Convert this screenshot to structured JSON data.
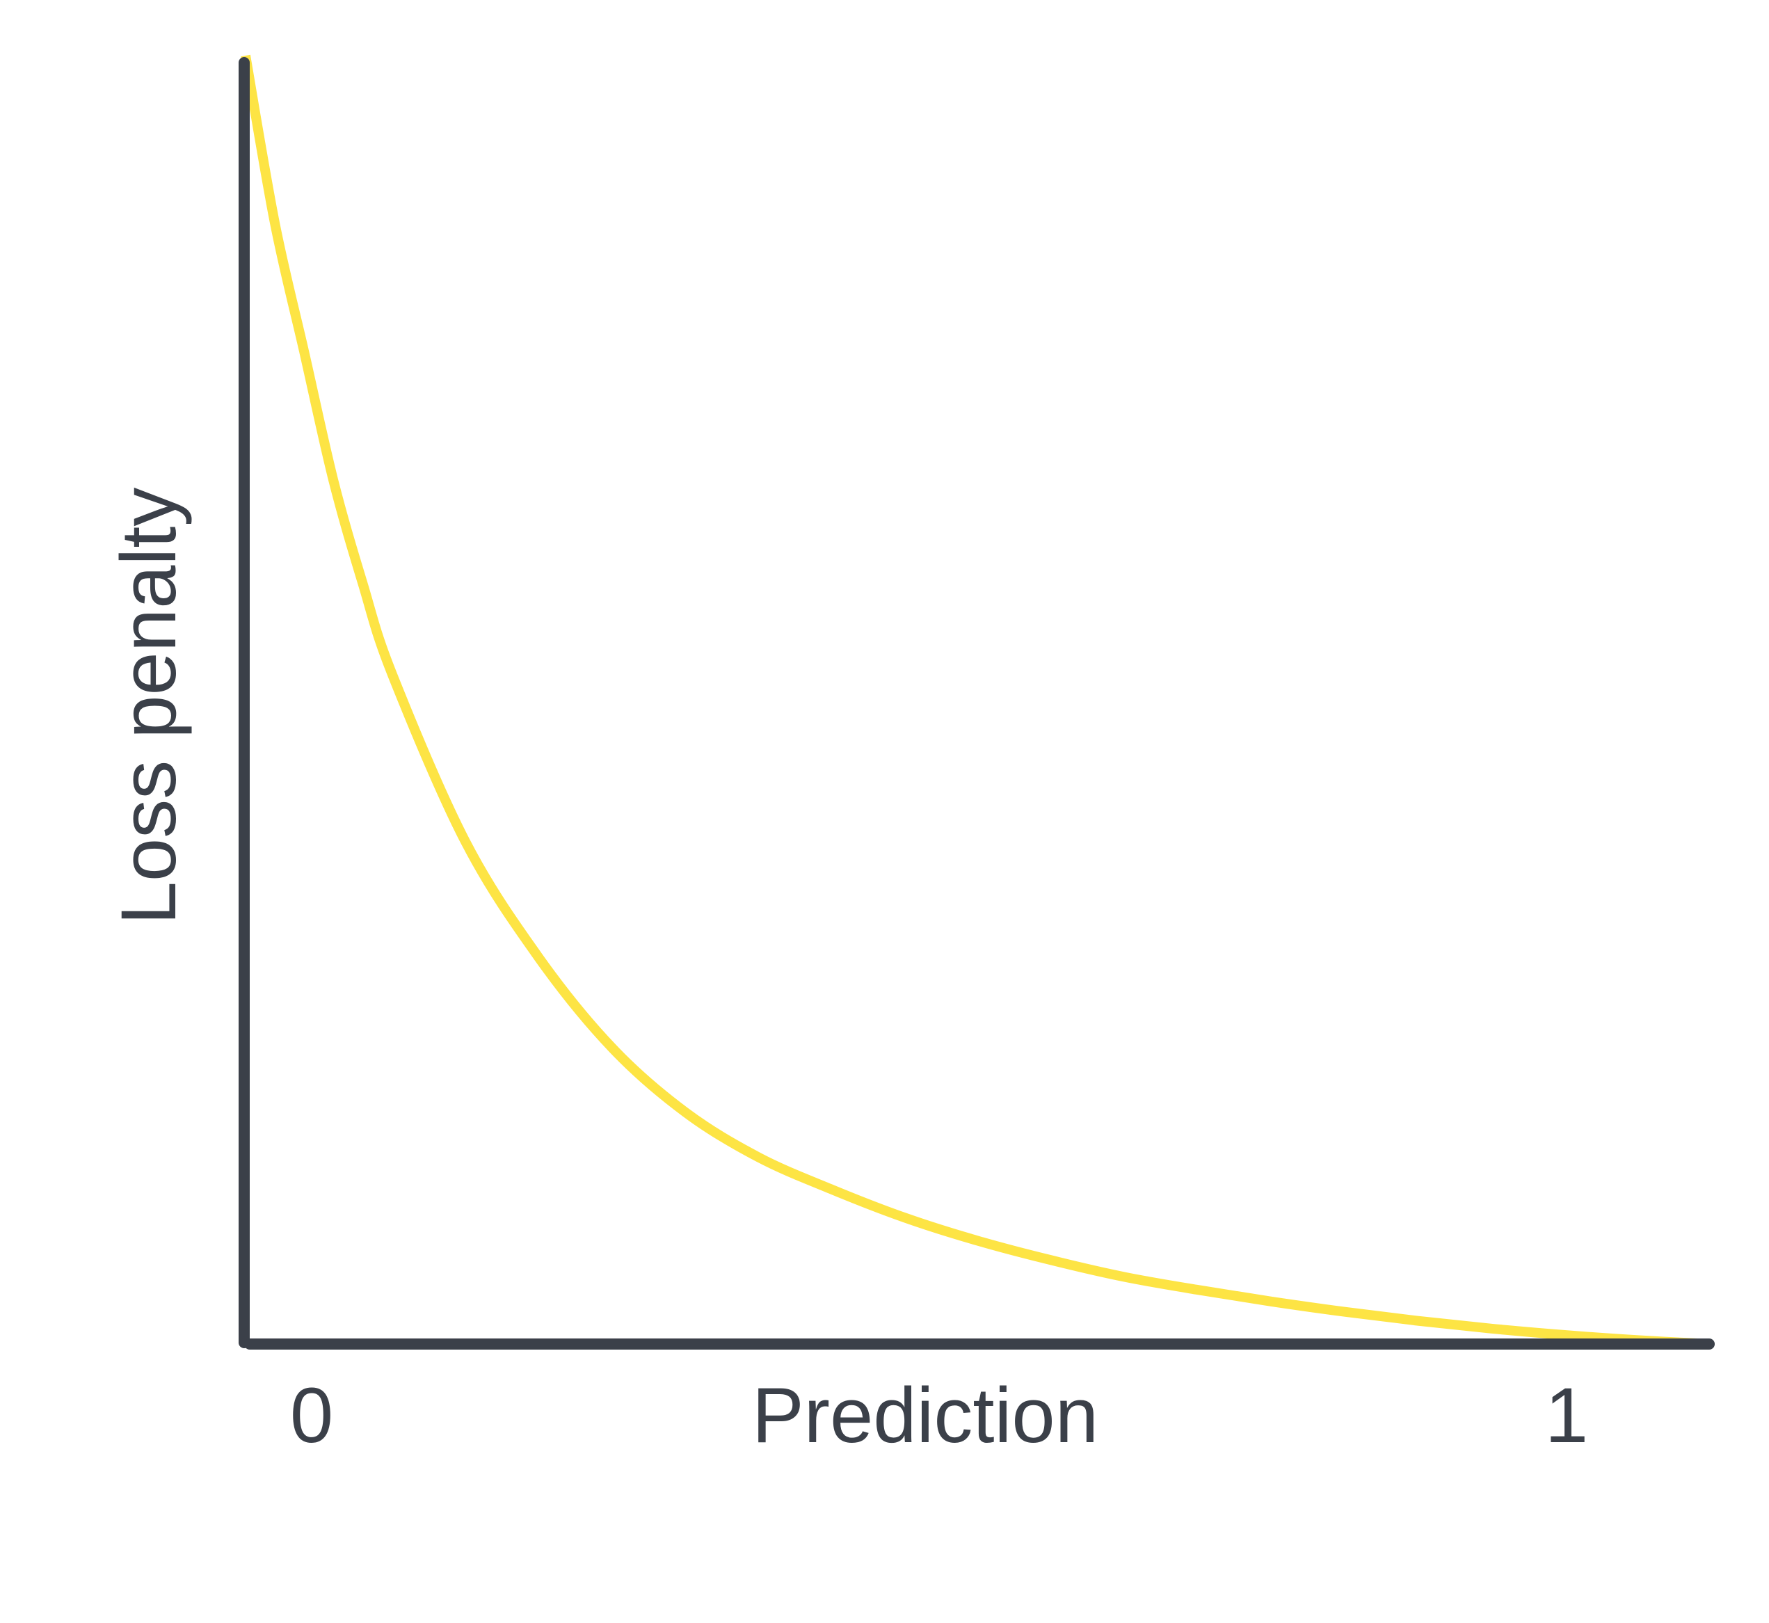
{
  "colors": {
    "axis": "#3b4049",
    "curve": "#fde444",
    "text": "#3b4049",
    "background": "#ffffff"
  },
  "chart_data": {
    "type": "line",
    "title": "",
    "xlabel": "Prediction",
    "ylabel": "Loss penalty",
    "x_tick_labels": [
      "0",
      "1"
    ],
    "xlim": [
      0,
      1
    ],
    "ylim": [
      0,
      1
    ],
    "grid": false,
    "legend": "none",
    "y_ticks_shown": false,
    "series": [
      {
        "x": [
          0,
          0.02,
          0.04,
          0.06,
          0.08,
          0.1,
          0.15,
          0.2,
          0.25,
          0.3,
          0.35,
          0.4,
          0.45,
          0.5,
          0.55,
          0.6,
          0.65,
          0.7,
          0.75,
          0.8,
          0.85,
          0.9,
          0.95,
          1.0
        ],
        "y": [
          1.0,
          0.87,
          0.77,
          0.67,
          0.59,
          0.52,
          0.39,
          0.3,
          0.23,
          0.18,
          0.145,
          0.12,
          0.098,
          0.08,
          0.065,
          0.052,
          0.042,
          0.033,
          0.025,
          0.018,
          0.012,
          0.007,
          0.003,
          0.0
        ]
      }
    ]
  }
}
